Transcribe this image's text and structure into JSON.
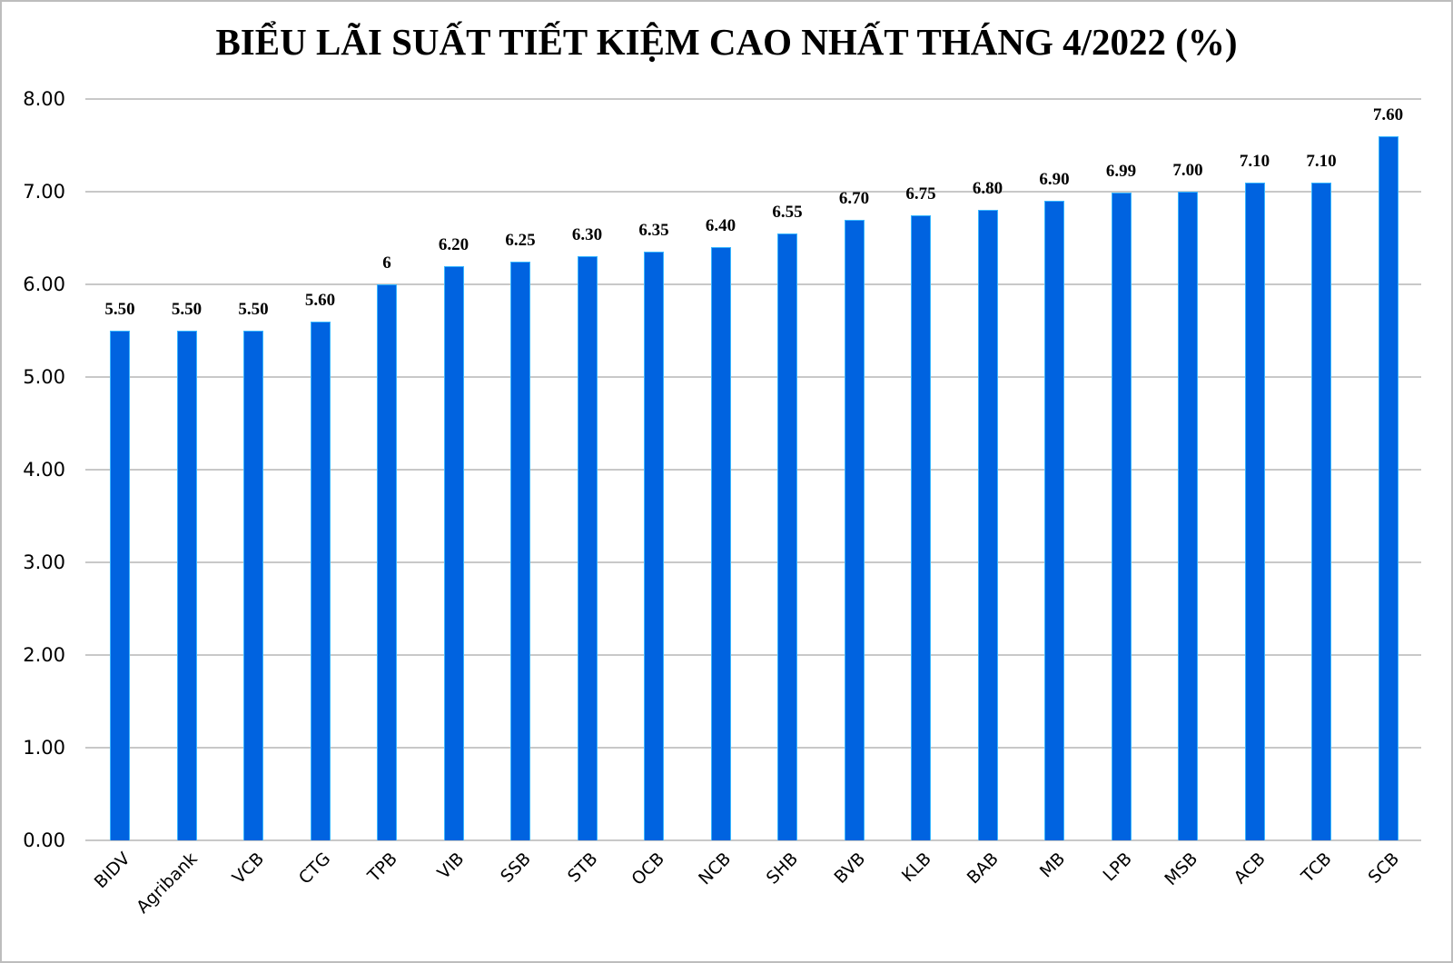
{
  "chart_data": {
    "type": "bar",
    "title": "BIỂU LÃI SUẤT TIẾT KIỆM CAO NHẤT THÁNG 4/2022 (%)",
    "xlabel": "",
    "ylabel": "",
    "ylim": [
      0,
      8
    ],
    "yticks": [
      "0.00",
      "1.00",
      "2.00",
      "3.00",
      "4.00",
      "5.00",
      "6.00",
      "7.00",
      "8.00"
    ],
    "grid": true,
    "legend": null,
    "bar_color": "#0063e0",
    "categories": [
      "BIDV",
      "Agribank",
      "VCB",
      "CTG",
      "TPB",
      "VIB",
      "SSB",
      "STB",
      "OCB",
      "NCB",
      "SHB",
      "BVB",
      "KLB",
      "BAB",
      "MB",
      "LPB",
      "MSB",
      "ACB",
      "TCB",
      "SCB"
    ],
    "values": [
      5.5,
      5.5,
      5.5,
      5.6,
      6.0,
      6.2,
      6.25,
      6.3,
      6.35,
      6.4,
      6.55,
      6.7,
      6.75,
      6.8,
      6.9,
      6.99,
      7.0,
      7.1,
      7.1,
      7.6
    ],
    "data_labels": [
      "5.50",
      "5.50",
      "5.50",
      "5.60",
      "6",
      "6.20",
      "6.25",
      "6.30",
      "6.35",
      "6.40",
      "6.55",
      "6.70",
      "6.75",
      "6.80",
      "6.90",
      "6.99",
      "7.00",
      "7.10",
      "7.10",
      "7.60"
    ]
  }
}
